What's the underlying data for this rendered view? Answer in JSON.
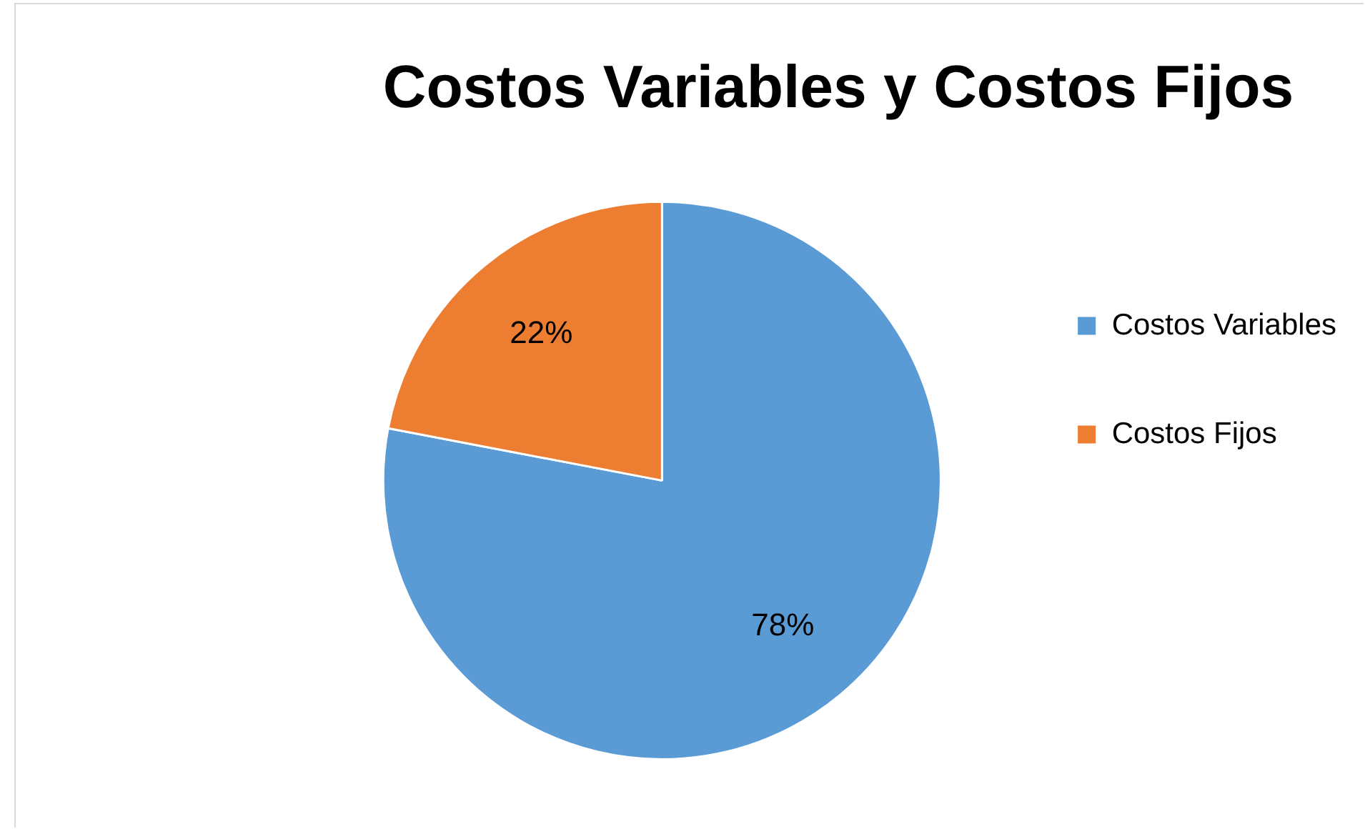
{
  "chart_data": {
    "type": "pie",
    "title": "Costos Variables y Costos Fijos",
    "categories": [
      "Costos Variables",
      "Costos Fijos"
    ],
    "values": [
      78,
      22
    ],
    "colors": [
      "#5b9bd5",
      "#ed7d31"
    ],
    "value_labels": [
      "78%",
      "22%"
    ],
    "legend": "right"
  }
}
